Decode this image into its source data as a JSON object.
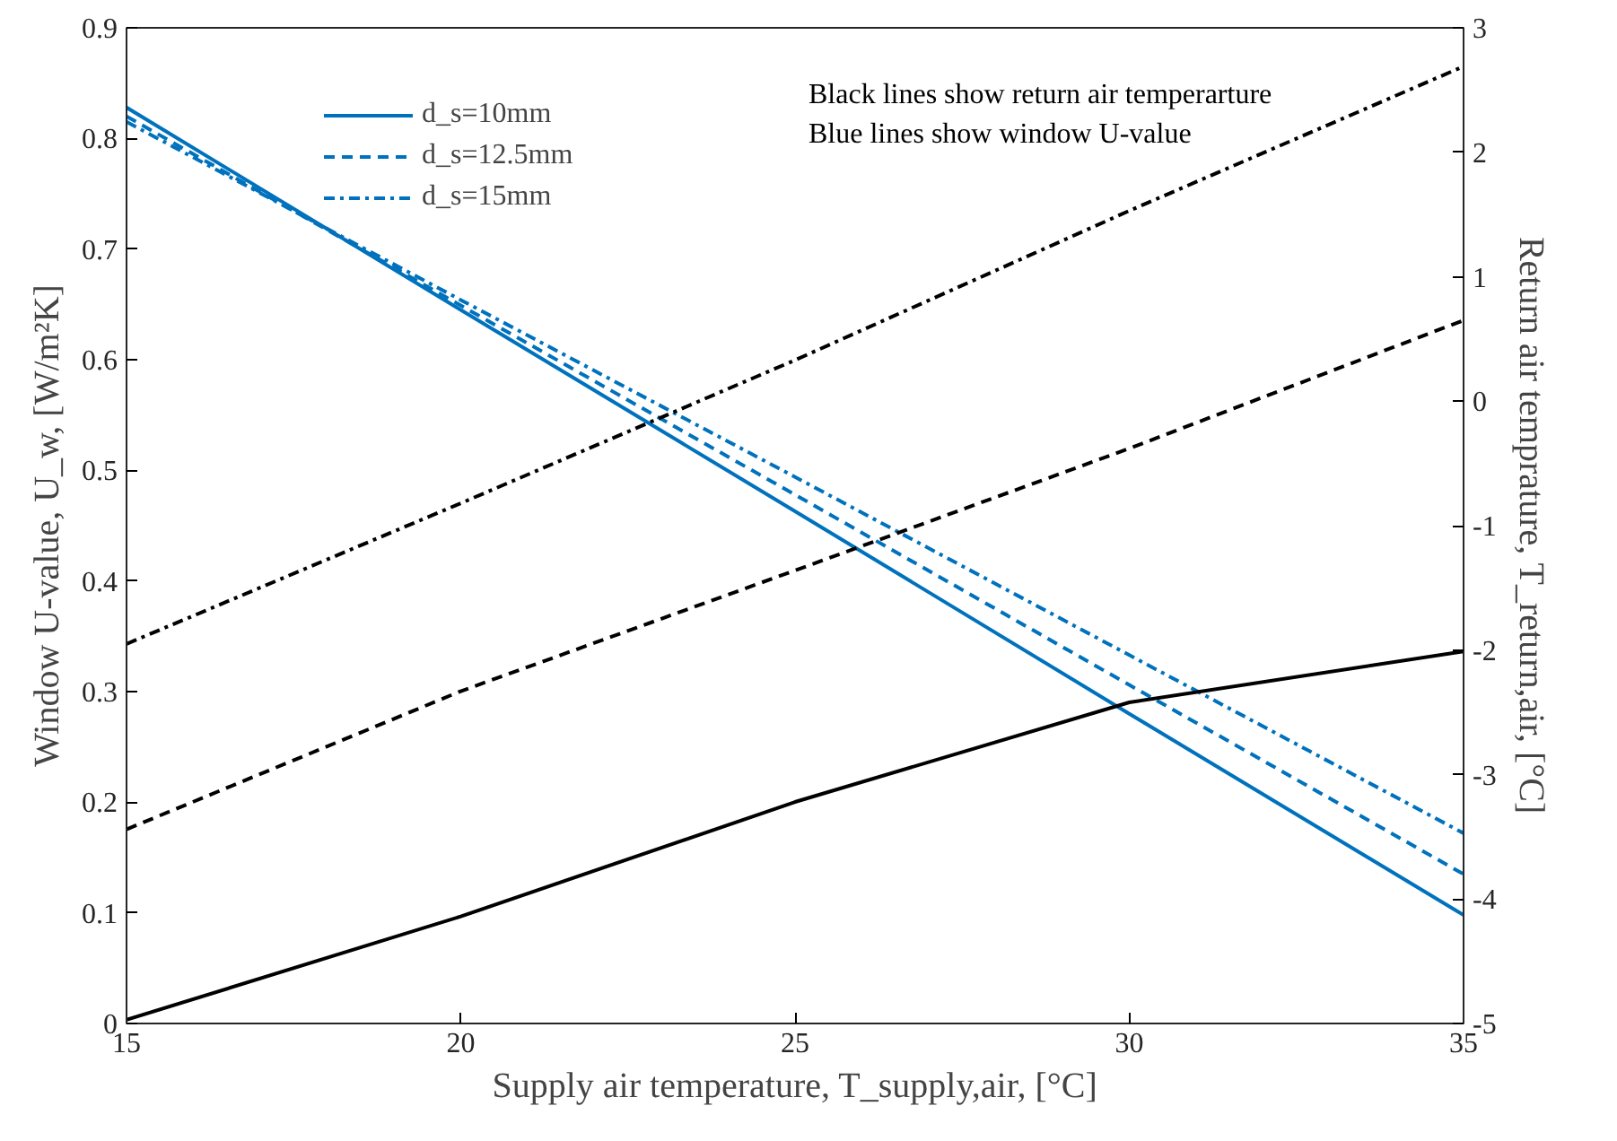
{
  "chart_data": {
    "type": "line",
    "xlabel": "Supply air temperature, T_supply,air, [°C]",
    "ylabel": "Window U-value, U_w, [W/m²K]",
    "y2label": "Return air temprature, T_return,air, [°C]",
    "annotations": [
      "Black lines show return air temperarture",
      "Blue lines show window U-value"
    ],
    "x": [
      15,
      20,
      25,
      30,
      35
    ],
    "xlim": [
      15,
      35
    ],
    "xticks": [
      15,
      20,
      25,
      30,
      35
    ],
    "ylim": [
      0,
      0.9
    ],
    "yticks": [
      0,
      0.1,
      0.2,
      0.3,
      0.4,
      0.5,
      0.6,
      0.7,
      0.8,
      0.9
    ],
    "y2lim": [
      -5,
      3
    ],
    "y2ticks": [
      -5,
      -4,
      -3,
      -2,
      -1,
      0,
      1,
      2,
      3
    ],
    "grid": false,
    "legend": "top left",
    "series": [
      {
        "name": "d_s=10mm",
        "color": "#0072bd",
        "line_style": "solid",
        "values": [
          0.828,
          0.645,
          0.463,
          0.28,
          0.098
        ]
      },
      {
        "name": "d_s=12.5mm",
        "color": "#0072bd",
        "line_style": "dashed",
        "values": [
          0.82,
          0.649,
          0.478,
          0.306,
          0.135
        ]
      },
      {
        "name": "d_s=15mm",
        "color": "#0072bd",
        "line_style": "dashdot",
        "values": [
          0.815,
          0.654,
          0.494,
          0.333,
          0.172
        ]
      },
      {
        "color": "#000000",
        "line_style": "solid",
        "axis": "y2",
        "values": [
          -4.97,
          -4.14,
          -3.22,
          -2.42,
          -2.01
        ]
      },
      {
        "color": "#000000",
        "line_style": "dashed",
        "axis": "y2",
        "values": [
          -3.44,
          -2.33,
          -1.36,
          -0.38,
          0.65
        ]
      },
      {
        "color": "#000000",
        "line_style": "dashdot",
        "axis": "y2",
        "values": [
          -1.95,
          -0.82,
          0.33,
          1.53,
          2.69
        ]
      }
    ]
  }
}
